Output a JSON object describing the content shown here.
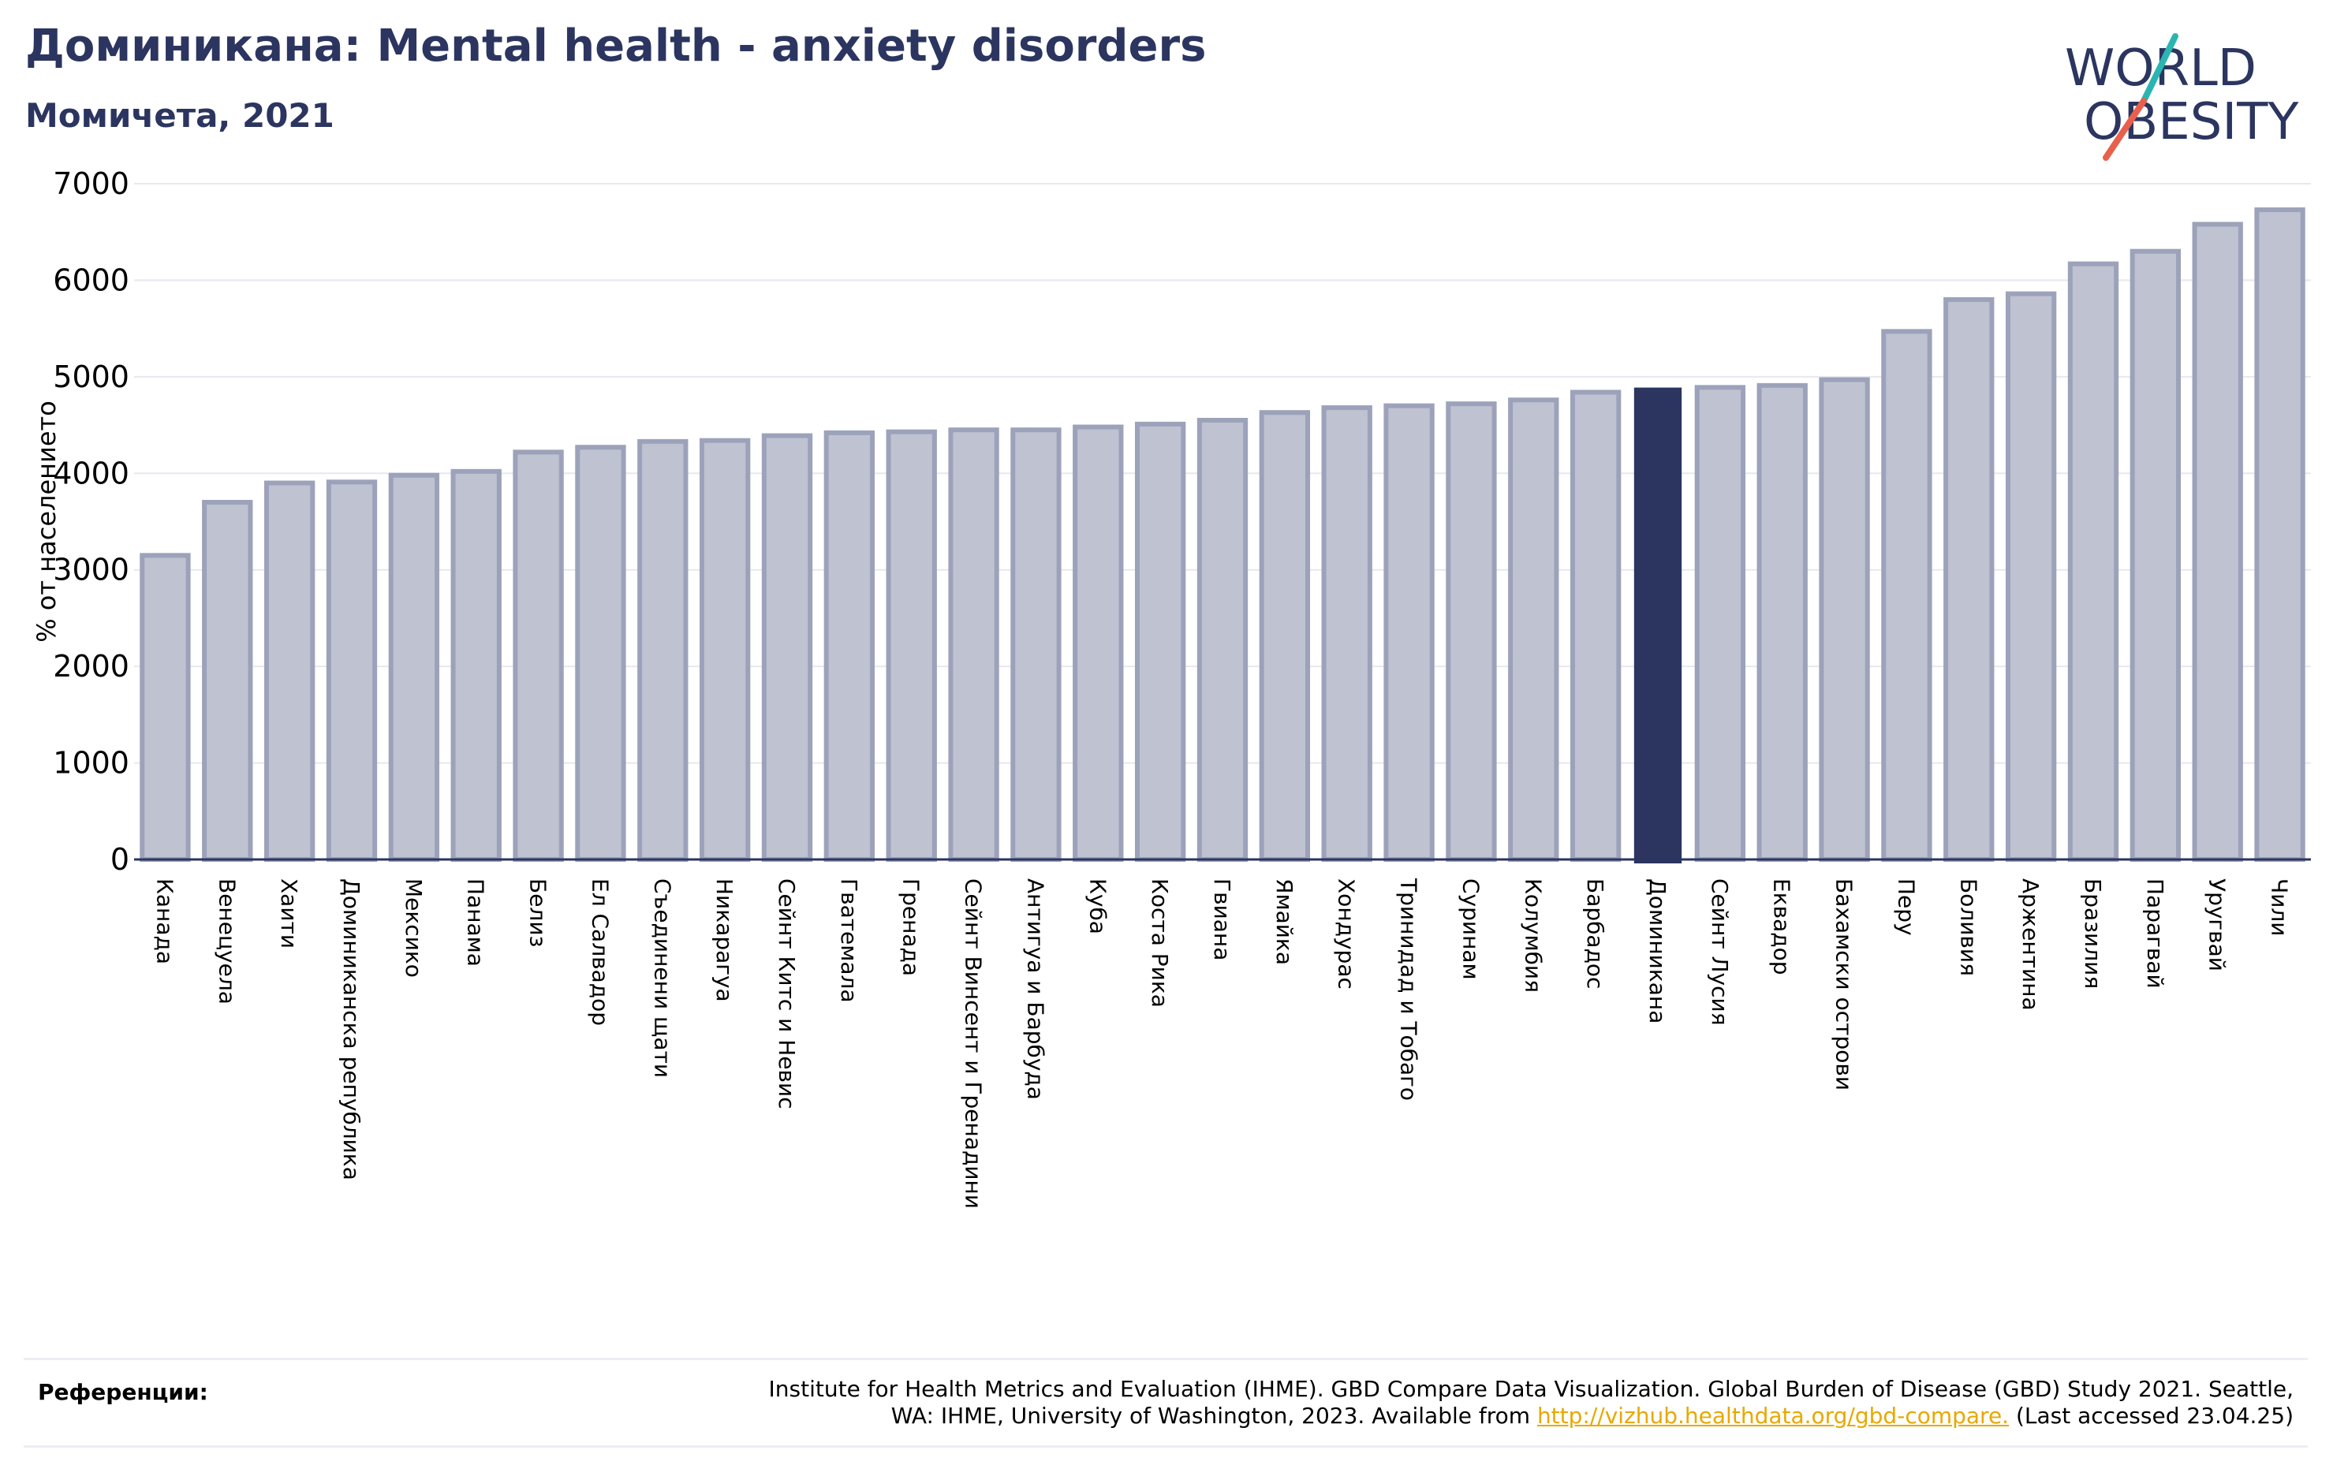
{
  "header": {
    "title": "Доминикана: Mental health - anxiety disorders",
    "subtitle": "Момичета, 2021"
  },
  "logo": {
    "line1": "WORLD",
    "line2": "OBESITY",
    "text_color": "#2b3560",
    "slash_colors": [
      "#2bb5b0",
      "#e8604c"
    ]
  },
  "colors": {
    "bar_default": "#bfc2d0",
    "bar_default_edge": "#9da2bb",
    "bar_highlight": "#2b3560",
    "grid": "#e6e8ee",
    "axis": "#2b3560"
  },
  "chart_data": {
    "type": "bar",
    "title": "Доминикана: Mental health - anxiety disorders",
    "subtitle": "Момичета, 2021",
    "ylabel": "% от населението",
    "xlabel": "",
    "ylim": [
      0,
      7000
    ],
    "yticks": [
      0,
      1000,
      2000,
      3000,
      4000,
      5000,
      6000,
      7000
    ],
    "grid": true,
    "highlight": "Доминикана",
    "categories": [
      "Канада",
      "Венецуела",
      "Хаити",
      "Доминиканска република",
      "Мексико",
      "Панама",
      "Белиз",
      "Ел Салвадор",
      "Съединени щати",
      "Никарагуа",
      "Сейнт Китс и Невис",
      "Гватемала",
      "Гренада",
      "Сейнт Винсент и Гренадини",
      "Антигуа и Барбуда",
      "Куба",
      "Коста Рика",
      "Гвиана",
      "Ямайка",
      "Хондурас",
      "Тринидад и Тобаго",
      "Суринам",
      "Колумбия",
      "Барбадос",
      "Доминикана",
      "Сейнт Лусия",
      "Еквадор",
      "Бахамски острови",
      "Перу",
      "Боливия",
      "Аржентина",
      "Бразилия",
      "Парагвай",
      "Уругвай",
      "Чили"
    ],
    "values": [
      3150,
      3700,
      3900,
      3910,
      3980,
      4020,
      4220,
      4270,
      4330,
      4340,
      4390,
      4420,
      4430,
      4450,
      4450,
      4480,
      4510,
      4550,
      4630,
      4680,
      4700,
      4720,
      4760,
      4840,
      4880,
      4890,
      4910,
      4970,
      5470,
      5800,
      5860,
      6170,
      6300,
      6580,
      6730
    ]
  },
  "references": {
    "label": "Референции:",
    "text_line1": "Institute for Health Metrics and Evaluation (IHME). GBD Compare Data Visualization. Global Burden of Disease (GBD) Study 2021. Seattle,",
    "text_line2_prefix": "WA: IHME, University of Washington, 2023. Available from ",
    "link": "http://vizhub.healthdata.org/gbd-compare.",
    "text_line2_suffix": " (Last accessed 23.04.25)"
  }
}
